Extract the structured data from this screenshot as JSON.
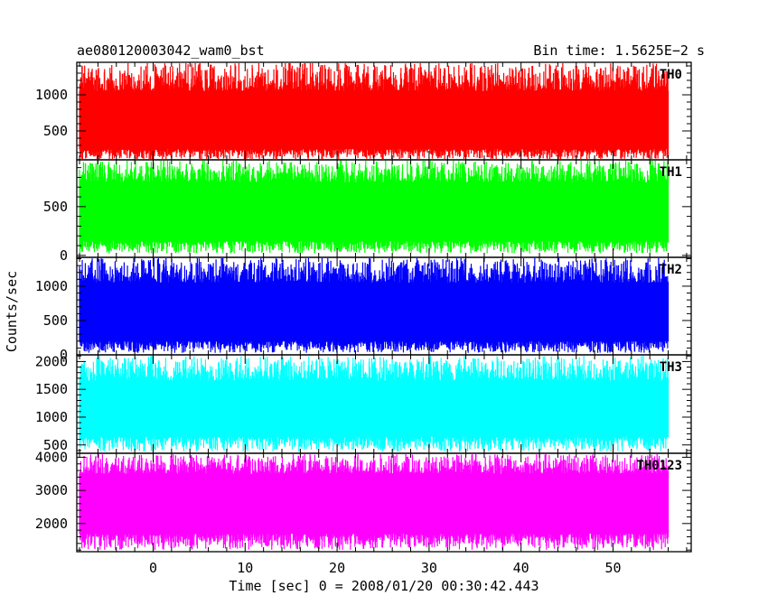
{
  "header": {
    "title": "ae080120003042_wam0_bst",
    "bin_time": "Bin time: 1.5625E−2 s"
  },
  "axes": {
    "ylabel": "Counts/sec",
    "xlabel": "Time [sec] 0 = 2008/01/20 00:30:42.443",
    "xlim": [
      -8.3,
      58.5
    ],
    "xticks": [
      0,
      10,
      20,
      30,
      40,
      50
    ],
    "data_x_range": [
      -8,
      56
    ]
  },
  "chart_data": [
    {
      "type": "line",
      "name": "TH0",
      "color": "#ff0000",
      "ylim": [
        100,
        1450
      ],
      "yticks": [
        500,
        1000
      ],
      "typical_low": 250,
      "typical_high": 1050,
      "min": 100,
      "max": 1450
    },
    {
      "type": "line",
      "name": "TH1",
      "color": "#00ff00",
      "ylim": [
        -20,
        980
      ],
      "yticks": [
        0,
        500
      ],
      "typical_low": 150,
      "typical_high": 750,
      "min": 20,
      "max": 980
    },
    {
      "type": "line",
      "name": "TH2",
      "color": "#0000ff",
      "ylim": [
        0,
        1420
      ],
      "yticks": [
        0,
        500,
        1000
      ],
      "typical_low": 200,
      "typical_high": 1050,
      "min": 30,
      "max": 1420
    },
    {
      "type": "line",
      "name": "TH3",
      "color": "#00ffff",
      "ylim": [
        350,
        2120
      ],
      "yticks": [
        500,
        1000,
        1500,
        2000
      ],
      "typical_low": 650,
      "typical_high": 1650,
      "min": 380,
      "max": 2100
    },
    {
      "type": "line",
      "name": "TH0123",
      "color": "#ff00ff",
      "ylim": [
        1150,
        4120
      ],
      "yticks": [
        2000,
        3000,
        4000
      ],
      "typical_low": 1700,
      "typical_high": 3500,
      "min": 1200,
      "max": 4100
    }
  ]
}
